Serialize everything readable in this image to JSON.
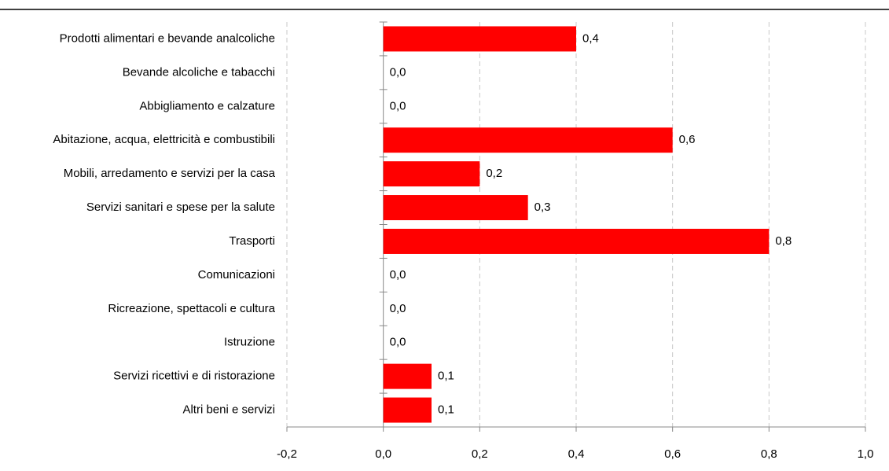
{
  "chart_data": {
    "type": "bar",
    "orientation": "horizontal",
    "categories": [
      "Prodotti alimentari e bevande analcoliche",
      "Bevande alcoliche e tabacchi",
      "Abbigliamento e calzature",
      "Abitazione, acqua, elettricità e combustibili",
      "Mobili, arredamento e servizi per la casa",
      "Servizi sanitari e spese per la salute",
      "Trasporti",
      "Comunicazioni",
      "Ricreazione, spettacoli e cultura",
      "Istruzione",
      "Servizi ricettivi e di ristorazione",
      "Altri beni e servizi"
    ],
    "values": [
      0.4,
      0,
      0,
      0.6,
      0.2,
      0.3,
      0.8,
      0,
      0,
      0,
      0.1,
      0.1
    ],
    "value_labels": [
      "0,4",
      "0,0",
      "0,0",
      "0,6",
      "0,2",
      "0,3",
      "0,8",
      "0,0",
      "0,0",
      "0,0",
      "0,1",
      "0,1"
    ],
    "color": "#ff0000",
    "xlim": [
      -0.2,
      1.0
    ],
    "xticks": [
      {
        "value": -0.2,
        "label": "-0,2"
      },
      {
        "value": 0,
        "label": "0,0"
      },
      {
        "value": 0.2,
        "label": "0,2"
      },
      {
        "value": 0.4,
        "label": "0,4"
      },
      {
        "value": 0.6,
        "label": "0,6"
      },
      {
        "value": 0.8,
        "label": "0,8"
      },
      {
        "value": 1.0,
        "label": "1,0"
      }
    ],
    "grid": true
  }
}
